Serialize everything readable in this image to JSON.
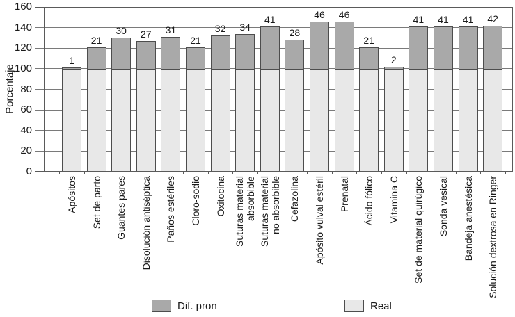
{
  "chart_data": {
    "type": "bar",
    "stacked": true,
    "title": "",
    "ylabel": "Porcentaje",
    "xlabel": "",
    "ylim": [
      0,
      160
    ],
    "ytick_step": 20,
    "grid": true,
    "legend_position": "bottom",
    "categories": [
      "Apósitos",
      "Set de parto",
      "Guantes pares",
      "Disolución antiséptica",
      "Paños estériles",
      "Cloro-sodio",
      "Oxitocina",
      "Suturas material\nabsorbible",
      "Suturas material\nno absorbible",
      "Cefazolina",
      "Apósito vulval estéril",
      "Prenatal",
      "Ácido fólico",
      "Vitamina C",
      "Set de material quirúgico",
      "Sonda vesical",
      "Bandeja anestésica",
      "Solución dextrosa en Ringer"
    ],
    "series": [
      {
        "name": "Real",
        "color": "#e8e8e8",
        "values": [
          100,
          100,
          100,
          100,
          100,
          100,
          100,
          100,
          100,
          100,
          100,
          100,
          100,
          100,
          100,
          100,
          100,
          100
        ]
      },
      {
        "name": "Dif. pron",
        "color": "#a9a9a9",
        "values": [
          1,
          21,
          30,
          27,
          31,
          21,
          32,
          34,
          41,
          28,
          46,
          46,
          21,
          2,
          41,
          41,
          41,
          42
        ]
      }
    ],
    "bar_value_labels": [
      1,
      21,
      30,
      27,
      31,
      21,
      32,
      34,
      41,
      28,
      46,
      46,
      21,
      2,
      41,
      41,
      41,
      42
    ],
    "legend": [
      {
        "label": "Dif. pron",
        "color": "#a9a9a9"
      },
      {
        "label": "Real",
        "color": "#e8e8e8"
      }
    ]
  },
  "palette": {
    "bar_border": "#4d4d4d",
    "grid_line": "#7a7a7a",
    "axis_line": "#5a5a5a",
    "text": "#1a1a1a",
    "background": "#ffffff"
  }
}
